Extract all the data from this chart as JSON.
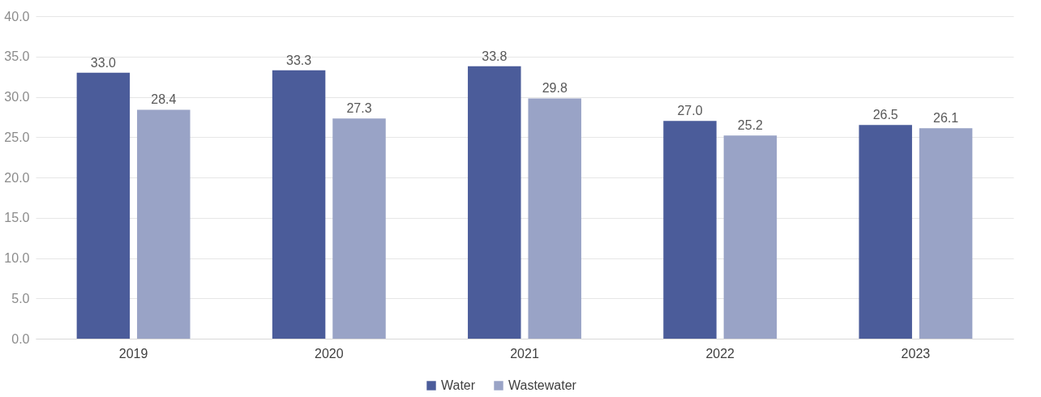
{
  "chart_data": {
    "type": "bar",
    "categories": [
      "2019",
      "2020",
      "2021",
      "2022",
      "2023"
    ],
    "series": [
      {
        "name": "Water",
        "color": "#4b5c9a",
        "values": [
          33.0,
          33.3,
          33.8,
          27.0,
          26.5
        ],
        "value_labels": [
          "33.0",
          "33.3",
          "33.8",
          "27.0",
          "26.5"
        ]
      },
      {
        "name": "Wastewater",
        "color": "#99a3c6",
        "values": [
          28.4,
          27.3,
          29.8,
          25.2,
          26.1
        ],
        "value_labels": [
          "28.4",
          "27.3",
          "29.8",
          "25.2",
          "26.1"
        ]
      }
    ],
    "ylim": [
      0,
      40
    ],
    "yticks": [
      {
        "value": 0,
        "label": "0.0"
      },
      {
        "value": 5,
        "label": "5.0"
      },
      {
        "value": 10,
        "label": "10.0"
      },
      {
        "value": 15,
        "label": "15.0"
      },
      {
        "value": 20,
        "label": "20.0"
      },
      {
        "value": 25,
        "label": "25.0"
      },
      {
        "value": 30,
        "label": "30.0"
      },
      {
        "value": 35,
        "label": "35.0"
      },
      {
        "value": 40,
        "label": "40.0"
      }
    ],
    "grid": "y",
    "legend": "bottom"
  }
}
